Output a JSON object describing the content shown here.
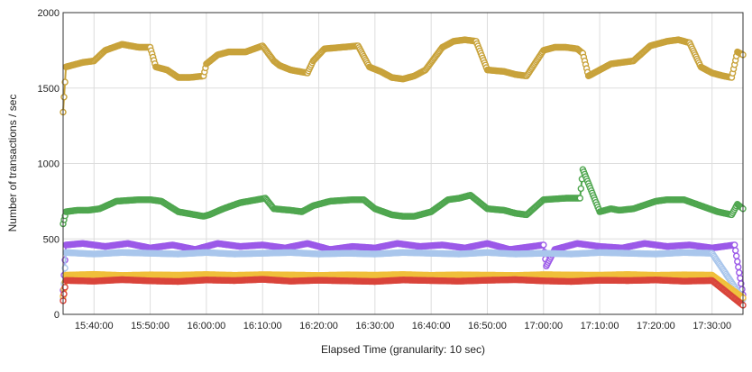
{
  "chart_data": {
    "type": "line",
    "title": "",
    "xlabel": "Elapsed Time (granularity: 10 sec)",
    "ylabel": "Number of transactions / sec",
    "x_start": "15:34:30",
    "x_end": "17:35:30",
    "ylim": [
      0,
      2000
    ],
    "y_ticks": [
      0,
      500,
      1000,
      1500,
      2000
    ],
    "x_ticks": [
      "15:40:00",
      "15:50:00",
      "16:00:00",
      "16:10:00",
      "16:20:00",
      "16:30:00",
      "16:40:00",
      "16:50:00",
      "17:00:00",
      "17:10:00",
      "17:20:00",
      "17:30:00"
    ],
    "grid": true,
    "legend": "none",
    "series": [
      {
        "color": "#c8a23a",
        "times": [
          "15:34:30",
          "15:35:00",
          "15:37:00",
          "15:38:00",
          "15:40:00",
          "15:42:00",
          "15:45:00",
          "15:48:00",
          "15:50:00",
          "15:51:00",
          "15:53:00",
          "15:55:00",
          "15:57:00",
          "15:59:30",
          "16:00:00",
          "16:02:00",
          "16:04:00",
          "16:07:00",
          "16:10:00",
          "16:12:00",
          "16:13:00",
          "16:15:00",
          "16:18:00",
          "16:19:00",
          "16:21:00",
          "16:24:00",
          "16:27:00",
          "16:29:00",
          "16:31:00",
          "16:33:00",
          "16:35:00",
          "16:37:00",
          "16:39:00",
          "16:42:00",
          "16:44:00",
          "16:46:00",
          "16:48:00",
          "16:50:00",
          "16:53:00",
          "16:55:00",
          "16:57:00",
          "17:00:00",
          "17:02:00",
          "17:04:00",
          "17:06:00",
          "17:07:00",
          "17:08:00",
          "17:10:00",
          "17:12:00",
          "17:14:00",
          "17:16:00",
          "17:19:00",
          "17:22:00",
          "17:24:00",
          "17:26:00",
          "17:28:00",
          "17:30:00",
          "17:32:00",
          "17:33:30",
          "17:34:30",
          "17:35:30"
        ],
        "values": [
          1340,
          1640,
          1660,
          1670,
          1680,
          1750,
          1790,
          1770,
          1770,
          1640,
          1620,
          1570,
          1570,
          1580,
          1660,
          1720,
          1740,
          1740,
          1780,
          1680,
          1650,
          1620,
          1600,
          1680,
          1760,
          1770,
          1780,
          1640,
          1610,
          1570,
          1560,
          1580,
          1620,
          1770,
          1810,
          1820,
          1810,
          1620,
          1610,
          1590,
          1580,
          1750,
          1770,
          1770,
          1760,
          1730,
          1580,
          1620,
          1660,
          1670,
          1680,
          1780,
          1810,
          1820,
          1800,
          1640,
          1600,
          1580,
          1570,
          1740,
          1720
        ]
      },
      {
        "color": "#4fa64f",
        "times": [
          "15:34:30",
          "15:35:00",
          "15:37:00",
          "15:39:00",
          "15:41:00",
          "15:44:00",
          "15:48:00",
          "15:50:00",
          "15:52:00",
          "15:55:00",
          "15:59:30",
          "16:00:30",
          "16:03:00",
          "16:06:00",
          "16:09:00",
          "16:10:30",
          "16:12:00",
          "16:15:00",
          "16:17:00",
          "16:19:00",
          "16:22:00",
          "16:26:00",
          "16:28:00",
          "16:30:00",
          "16:33:00",
          "16:35:00",
          "16:37:00",
          "16:40:00",
          "16:43:00",
          "16:45:00",
          "16:47:00",
          "16:50:00",
          "16:53:00",
          "16:55:00",
          "16:57:00",
          "17:00:00",
          "17:04:00",
          "17:06:30",
          "17:07:00",
          "17:10:00",
          "17:12:00",
          "17:13:30",
          "17:16:00",
          "17:20:00",
          "17:22:00",
          "17:25:00",
          "17:28:00",
          "17:31:00",
          "17:33:30",
          "17:34:30",
          "17:35:30"
        ],
        "values": [
          600,
          680,
          690,
          690,
          700,
          750,
          760,
          760,
          750,
          680,
          650,
          660,
          700,
          740,
          760,
          770,
          700,
          690,
          680,
          720,
          750,
          760,
          760,
          700,
          660,
          650,
          650,
          680,
          760,
          770,
          790,
          700,
          690,
          670,
          660,
          760,
          770,
          770,
          960,
          680,
          700,
          690,
          700,
          750,
          760,
          760,
          720,
          680,
          660,
          730,
          700
        ]
      },
      {
        "color": "#9b59e8",
        "times": [
          "15:34:30",
          "15:35:00",
          "15:38:00",
          "15:42:00",
          "15:46:00",
          "15:50:00",
          "15:54:00",
          "15:58:00",
          "16:02:00",
          "16:06:00",
          "16:10:00",
          "16:14:00",
          "16:18:00",
          "16:22:00",
          "16:26:00",
          "16:30:00",
          "16:34:00",
          "16:38:00",
          "16:42:00",
          "16:46:00",
          "16:50:00",
          "16:54:00",
          "16:58:00",
          "17:00:00",
          "17:00:30",
          "17:02:00",
          "17:06:00",
          "17:10:00",
          "17:14:00",
          "17:18:00",
          "17:22:00",
          "17:26:00",
          "17:30:00",
          "17:34:00",
          "17:35:30"
        ],
        "values": [
          160,
          460,
          470,
          450,
          470,
          440,
          460,
          430,
          470,
          450,
          460,
          440,
          470,
          430,
          450,
          440,
          470,
          450,
          460,
          440,
          470,
          430,
          450,
          460,
          320,
          430,
          470,
          450,
          440,
          470,
          450,
          460,
          440,
          460,
          130
        ]
      },
      {
        "color": "#a9c6ec",
        "times": [
          "15:34:30",
          "15:35:00",
          "15:40:00",
          "15:45:00",
          "15:50:00",
          "15:55:00",
          "16:00:00",
          "16:05:00",
          "16:10:00",
          "16:15:00",
          "16:20:00",
          "16:25:00",
          "16:30:00",
          "16:35:00",
          "16:40:00",
          "16:45:00",
          "16:50:00",
          "16:55:00",
          "17:00:00",
          "17:05:00",
          "17:10:00",
          "17:15:00",
          "17:20:00",
          "17:25:00",
          "17:30:00",
          "17:35:30"
        ],
        "values": [
          100,
          410,
          400,
          410,
          405,
          400,
          410,
          400,
          405,
          410,
          400,
          405,
          400,
          410,
          405,
          400,
          410,
          400,
          405,
          400,
          410,
          405,
          400,
          410,
          405,
          100
        ]
      },
      {
        "color": "#f0bf3a",
        "times": [
          "15:34:30",
          "15:35:00",
          "15:40:00",
          "15:45:00",
          "15:50:00",
          "15:55:00",
          "16:00:00",
          "16:05:00",
          "16:10:00",
          "16:15:00",
          "16:20:00",
          "16:25:00",
          "16:30:00",
          "16:35:00",
          "16:40:00",
          "16:45:00",
          "16:50:00",
          "16:55:00",
          "17:00:00",
          "17:05:00",
          "17:10:00",
          "17:15:00",
          "17:20:00",
          "17:25:00",
          "17:30:00",
          "17:35:30"
        ],
        "values": [
          120,
          260,
          265,
          258,
          262,
          260,
          264,
          259,
          263,
          261,
          258,
          262,
          260,
          264,
          259,
          262,
          260,
          258,
          263,
          261,
          260,
          264,
          259,
          262,
          260,
          110
        ]
      },
      {
        "color": "#d9443a",
        "times": [
          "15:34:30",
          "15:35:00",
          "15:40:00",
          "15:45:00",
          "15:50:00",
          "15:55:00",
          "16:00:00",
          "16:05:00",
          "16:10:00",
          "16:15:00",
          "16:20:00",
          "16:25:00",
          "16:30:00",
          "16:35:00",
          "16:40:00",
          "16:45:00",
          "16:50:00",
          "16:55:00",
          "17:00:00",
          "17:05:00",
          "17:10:00",
          "17:15:00",
          "17:20:00",
          "17:25:00",
          "17:30:00",
          "17:35:30"
        ],
        "values": [
          90,
          225,
          220,
          230,
          222,
          218,
          228,
          224,
          232,
          220,
          226,
          222,
          218,
          228,
          224,
          220,
          226,
          230,
          222,
          218,
          226,
          224,
          228,
          220,
          224,
          60
        ]
      }
    ]
  }
}
